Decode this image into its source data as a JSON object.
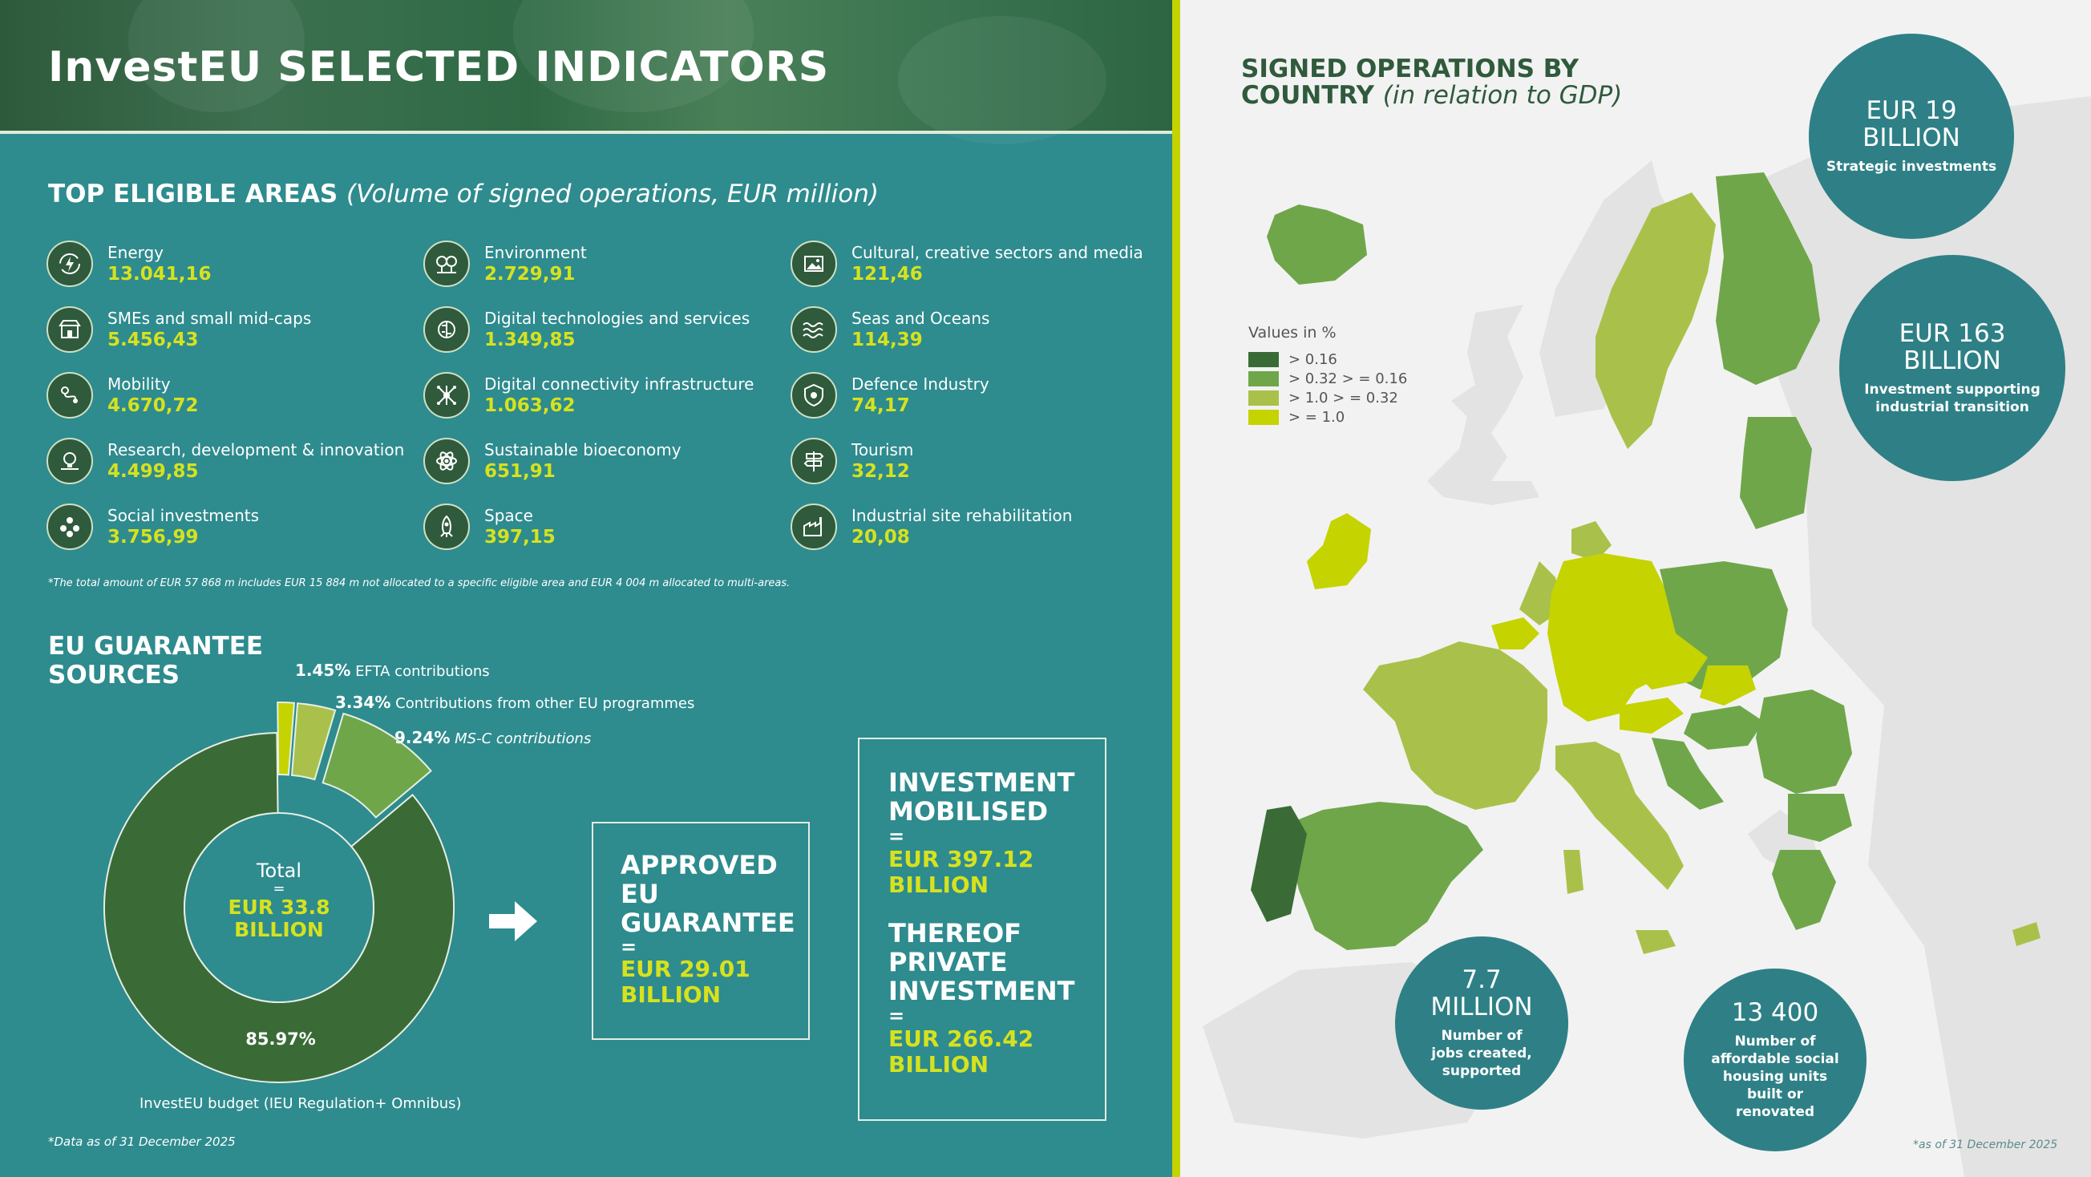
{
  "title": "InvestEU SELECTED INDICATORS",
  "top_areas": {
    "heading": "TOP ELIGIBLE AREAS",
    "heading_note": "(Volume of signed operations, EUR million)",
    "items": [
      {
        "label": "Energy",
        "value": "13.041,16",
        "icon": "energy-icon"
      },
      {
        "label": "SMEs and small mid-caps",
        "value": "5.456,43",
        "icon": "shop-icon"
      },
      {
        "label": "Mobility",
        "value": "4.670,72",
        "icon": "route-icon"
      },
      {
        "label": "Research, development & innovation",
        "value": "4.499,85",
        "icon": "lightbulb-icon"
      },
      {
        "label": "Social investments",
        "value": "3.756,99",
        "icon": "people-icon"
      },
      {
        "label": "Environment",
        "value": "2.729,91",
        "icon": "trees-icon"
      },
      {
        "label": "Digital technologies and services",
        "value": "1.349,85",
        "icon": "brain-chip-icon"
      },
      {
        "label": "Digital connectivity infrastructure",
        "value": "1.063,62",
        "icon": "network-icon"
      },
      {
        "label": "Sustainable bioeconomy",
        "value": "651,91",
        "icon": "atom-icon"
      },
      {
        "label": "Space",
        "value": "397,15",
        "icon": "rocket-icon"
      },
      {
        "label": "Cultural, creative sectors and media",
        "value": "121,46",
        "icon": "picture-icon"
      },
      {
        "label": "Seas and Oceans",
        "value": "114,39",
        "icon": "waves-icon"
      },
      {
        "label": "Defence Industry",
        "value": "74,17",
        "icon": "shield-icon"
      },
      {
        "label": "Tourism",
        "value": "32,12",
        "icon": "signpost-icon"
      },
      {
        "label": "Industrial site rehabilitation",
        "value": "20,08",
        "icon": "factory-icon"
      }
    ],
    "footnote": "*The total amount of EUR 57 868 m includes EUR 15 884 m not allocated to a specific eligible area and EUR 4 004 m allocated to multi-areas."
  },
  "guarantee": {
    "heading_line1": "EU GUARANTEE",
    "heading_line2": "SOURCES",
    "center_label": "Total",
    "center_eq": "=",
    "center_value_line1": "EUR 33.8",
    "center_value_line2": "BILLION",
    "main_pct": "85.97%",
    "main_caption": "InvestEU budget (IEU Regulation+ Omnibus)",
    "labels": [
      {
        "pct": "1.45%",
        "text": "EFTA contributions"
      },
      {
        "pct": "3.34%",
        "text": "Contributions from other EU programmes"
      },
      {
        "pct": "9.24%",
        "text": "MS-C contributions"
      }
    ],
    "data_note": "*Data as of 31 December 2025"
  },
  "chart_data": {
    "type": "pie",
    "slices": [
      {
        "name": "InvestEU budget (IEU Regulation+ Omnibus)",
        "value": 85.97,
        "color": "#3a6b37"
      },
      {
        "name": "EFTA contributions",
        "value": 1.45,
        "color": "#c5d300"
      },
      {
        "name": "Contributions from other EU programmes",
        "value": 3.34,
        "color": "#a9c14a"
      },
      {
        "name": "MS-C contributions",
        "value": 9.24,
        "color": "#70a64a"
      }
    ],
    "donut": true,
    "exploded": [
      "EFTA contributions",
      "Contributions from other EU programmes",
      "MS-C contributions"
    ]
  },
  "approved": {
    "line1": "APPROVED",
    "line2": "EU",
    "line3": "GUARANTEE",
    "eq": "=",
    "value_line1": "EUR 29.01",
    "value_line2": "BILLION"
  },
  "mobilised": {
    "line1": "INVESTMENT",
    "line2": "MOBILISED",
    "eq": "=",
    "value_line1": "EUR 397.12",
    "value_line2": "BILLION",
    "private_line1": "THEREOF",
    "private_line2": "PRIVATE",
    "private_line3": "INVESTMENT",
    "private_eq": "=",
    "private_value_line1": "EUR 266.42",
    "private_value_line2": "BILLION"
  },
  "map": {
    "heading_line1": "SIGNED OPERATIONS BY",
    "heading_line2": "COUNTRY",
    "heading_note": "(in relation to GDP)",
    "legend_title": "Values in %",
    "legend": [
      {
        "label": "> 0.16",
        "color": "#3a6b37"
      },
      {
        "label": "> 0.32 > = 0.16",
        "color": "#70a64a"
      },
      {
        "label": "> 1.0 > = 0.32",
        "color": "#a9c14a"
      },
      {
        "label": "> = 1.0",
        "color": "#c5d300"
      }
    ],
    "date_note": "*as of 31 December 2025"
  },
  "bubbles": {
    "strategic": {
      "big1": "EUR 19",
      "big2": "BILLION",
      "small": "Strategic investments"
    },
    "industrial": {
      "big1": "EUR 163",
      "big2": "BILLION",
      "small1": "Investment supporting",
      "small2": "industrial transition"
    },
    "jobs": {
      "big1": "7.7",
      "big2": "MILLION",
      "small1": "Number of",
      "small2": "jobs created,",
      "small3": "supported"
    },
    "housing": {
      "big1": "13 400",
      "small1": "Number of",
      "small2": "affordable social",
      "small3": "housing units",
      "small4": "built or",
      "small5": "renovated"
    }
  },
  "colors": {
    "teal_bg": "#2e8b8e",
    "accent_yellow": "#d6e21e",
    "dark_green": "#3a6b37",
    "mid_green": "#70a64a",
    "light_green": "#a9c14a",
    "lime": "#c5d300",
    "bubble": "#2e8086"
  }
}
